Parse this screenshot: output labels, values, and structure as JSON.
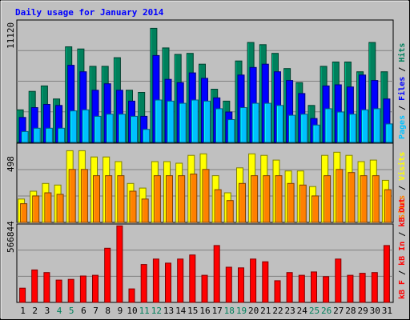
{
  "title": "Daily usage for January 2014",
  "colors": {
    "hits": "#00805c",
    "files": "#0000ff",
    "pages": "#00c0ff",
    "visits": "#ffff00",
    "sites": "#ff8000",
    "kbytes": "#ff0000",
    "title": "#0000ff",
    "weekend_day": "#00805c",
    "weekday_day": "#000000",
    "plot_bg": "#c0c0c0"
  },
  "chart_data": {
    "type": "bar",
    "title": "Daily usage for January 2014",
    "categories": [
      "1",
      "2",
      "3",
      "4",
      "5",
      "6",
      "7",
      "8",
      "9",
      "10",
      "11",
      "12",
      "13",
      "14",
      "15",
      "16",
      "17",
      "18",
      "19",
      "20",
      "21",
      "22",
      "23",
      "24",
      "25",
      "26",
      "27",
      "28",
      "29",
      "30",
      "31"
    ],
    "weekend_days": [
      "4",
      "5",
      "11",
      "12",
      "18",
      "19",
      "25",
      "26"
    ],
    "panels": [
      {
        "id": "hits-files-pages",
        "ymax_label": "11120",
        "ymax": 11120,
        "right_label": [
          "Pages",
          "Files",
          "Hits"
        ],
        "series": [
          {
            "name": "Hits",
            "values": [
              3000,
              4700,
              5200,
              4000,
              8800,
              8600,
              7000,
              7000,
              7800,
              4800,
              4600,
              10500,
              8700,
              8100,
              8200,
              7200,
              4900,
              3800,
              7500,
              9200,
              9000,
              8200,
              6800,
              5500,
              3400,
              7000,
              7400,
              7400,
              6500,
              9200,
              6500
            ]
          },
          {
            "name": "Files",
            "values": [
              2300,
              3200,
              3500,
              3400,
              7100,
              6500,
              4800,
              5400,
              4800,
              3800,
              2400,
              8000,
              5800,
              5500,
              6400,
              5900,
              4100,
              2800,
              6200,
              6900,
              7200,
              6500,
              5700,
              4500,
              2200,
              5200,
              5300,
              5100,
              6200,
              5700,
              4000
            ]
          },
          {
            "name": "Pages",
            "values": [
              1000,
              1300,
              1300,
              1300,
              2900,
              3000,
              2400,
              2600,
              2600,
              2400,
              1200,
              3900,
              3800,
              3600,
              3900,
              3800,
              3100,
              2100,
              3200,
              3600,
              3600,
              3400,
              2500,
              2600,
              1600,
              3100,
              2800,
              2600,
              3000,
              3100,
              1700
            ]
          }
        ]
      },
      {
        "id": "visits-sites",
        "ymax_label": "498",
        "ymax": 498,
        "right_label": [
          "Sites",
          "Visits"
        ],
        "series": [
          {
            "name": "Visits",
            "values": [
              150,
              200,
              250,
              240,
              460,
              460,
              420,
              420,
              390,
              250,
              220,
              390,
              390,
              380,
              430,
              440,
              300,
              190,
              350,
              440,
              430,
              400,
              330,
              330,
              230,
              430,
              450,
              430,
              390,
              400,
              270
            ]
          },
          {
            "name": "Sites",
            "values": [
              120,
              170,
              190,
              180,
              340,
              340,
              300,
              300,
              300,
              200,
              150,
              300,
              300,
              300,
              310,
              340,
              210,
              140,
              250,
              300,
              300,
              300,
              250,
              240,
              170,
              300,
              340,
              320,
              300,
              300,
              210
            ]
          }
        ]
      },
      {
        "id": "kbytes",
        "ymax_label": "566844",
        "ymax": 566844,
        "right_label": [
          "kB F",
          "kB In",
          "kB Out"
        ],
        "series": [
          {
            "name": "kB F",
            "values": [
              0,
              0,
              0,
              0,
              0,
              0,
              0,
              0,
              0,
              0,
              0,
              0,
              0,
              0,
              0,
              0,
              0,
              0,
              0,
              0,
              0,
              0,
              0,
              0,
              0,
              0,
              0,
              0,
              0,
              0,
              0
            ]
          },
          {
            "name": "kB In",
            "values": [
              0,
              0,
              0,
              0,
              0,
              0,
              0,
              0,
              0,
              0,
              0,
              0,
              0,
              0,
              0,
              0,
              0,
              0,
              0,
              0,
              0,
              0,
              0,
              0,
              0,
              0,
              0,
              0,
              0,
              0,
              0
            ]
          },
          {
            "name": "kB Out",
            "values": [
              105000,
              240000,
              220000,
              165000,
              170000,
              195000,
              200000,
              400000,
              565000,
              100000,
              280000,
              320000,
              290000,
              320000,
              350000,
              200000,
              420000,
              260000,
              255000,
              320000,
              300000,
              160000,
              220000,
              200000,
              225000,
              190000,
              320000,
              200000,
              215000,
              220000,
              420000
            ]
          }
        ]
      }
    ]
  }
}
